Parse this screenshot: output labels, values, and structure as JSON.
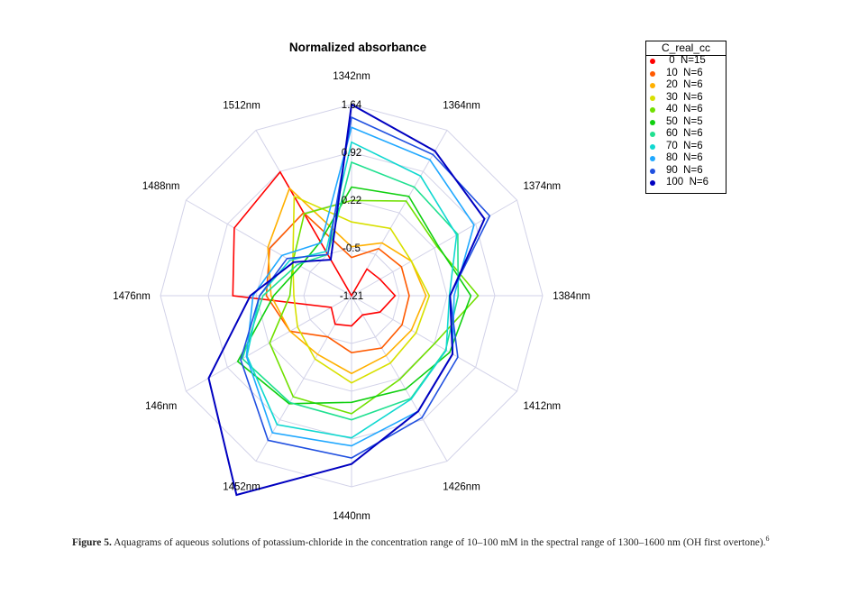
{
  "chart_data": {
    "type": "radar",
    "title": "Normalized absorbance",
    "axes": [
      "1342nm",
      "1364nm",
      "1374nm",
      "1384nm",
      "1412nm",
      "1426nm",
      "1440nm",
      "1452nm",
      "146nm",
      "1476nm",
      "1488nm",
      "1512nm"
    ],
    "ring_labels": [
      "1.64",
      "0.92",
      "0.22",
      "-0.5",
      "-1.21"
    ],
    "rlim": [
      -1.21,
      1.64
    ],
    "legend_title": "C_real_cc",
    "legend_position": "top-right",
    "series": [
      {
        "name": "0",
        "n": "N=15",
        "color": "#ff0000",
        "values": [
          -1.21,
          -0.75,
          -0.72,
          -0.56,
          -0.72,
          -0.88,
          -0.76,
          -0.72,
          -0.86,
          0.56,
          0.81,
          0.92
        ]
      },
      {
        "name": "10",
        "n": "N=6",
        "color": "#ff5a00",
        "values": [
          -0.64,
          -0.4,
          -0.35,
          -0.35,
          -0.34,
          -0.31,
          -0.36,
          -0.5,
          -0.15,
          0.06,
          0.2,
          0.22
        ]
      },
      {
        "name": "20",
        "n": "N=6",
        "color": "#ffb000",
        "values": [
          -0.48,
          -0.3,
          -0.18,
          -0.1,
          -0.18,
          -0.18,
          -0.05,
          -0.2,
          -0.15,
          -0.01,
          0.23,
          0.64
        ]
      },
      {
        "name": "30",
        "n": "N=6",
        "color": "#d8e000",
        "values": [
          -0.11,
          -0.05,
          -0.18,
          -0.05,
          -0.1,
          -0.05,
          0.09,
          -0.12,
          -0.28,
          -0.35,
          -0.2,
          0.5
        ]
      },
      {
        "name": "40",
        "n": "N=6",
        "color": "#70e000",
        "values": [
          0.21,
          0.42,
          0.26,
          0.68,
          0.22,
          0.23,
          0.55,
          0.53,
          0.2,
          -0.29,
          -0.2,
          0.2
        ]
      },
      {
        "name": "50",
        "n": "N=5",
        "color": "#10d010",
        "values": [
          0.41,
          0.5,
          0.28,
          0.57,
          0.48,
          0.4,
          0.38,
          0.65,
          0.75,
          -0.05,
          -0.33,
          -0.28
        ]
      },
      {
        "name": "60",
        "n": "N=6",
        "color": "#20e090",
        "values": [
          0.78,
          0.66,
          0.62,
          0.38,
          0.41,
          0.56,
          0.64,
          0.63,
          0.67,
          0.11,
          -0.28,
          -0.5
        ]
      },
      {
        "name": "70",
        "n": "N=6",
        "color": "#10d8d0",
        "values": [
          1.08,
          0.85,
          0.6,
          0.25,
          0.42,
          0.57,
          0.91,
          1.01,
          0.59,
          0.16,
          -0.15,
          -0.45
        ]
      },
      {
        "name": "80",
        "n": "N=6",
        "color": "#20a8ff",
        "values": [
          1.3,
          1.13,
          0.9,
          0.32,
          0.53,
          0.78,
          1.03,
          1.15,
          0.6,
          0.26,
          -0.01,
          -0.3
        ]
      },
      {
        "name": "90",
        "n": "N=6",
        "color": "#2050e0",
        "values": [
          1.45,
          1.22,
          1.17,
          0.26,
          0.62,
          0.89,
          1.21,
          1.28,
          0.7,
          0.16,
          -0.1,
          -0.5
        ]
      },
      {
        "name": "100",
        "n": "N=6",
        "color": "#0000c0",
        "values": [
          1.64,
          1.28,
          1.08,
          0.26,
          0.53,
          0.78,
          1.3,
          2.22,
          1.25,
          0.3,
          -0.21,
          -0.59
        ]
      }
    ]
  },
  "caption": {
    "figure_label": "Figure 5.",
    "text": "Aquagrams of aqueous solutions of potassium-chloride in the concentration range of 10–100 mM in the spectral range of 1300–1600 nm (OH first overtone).",
    "reference": "6"
  }
}
